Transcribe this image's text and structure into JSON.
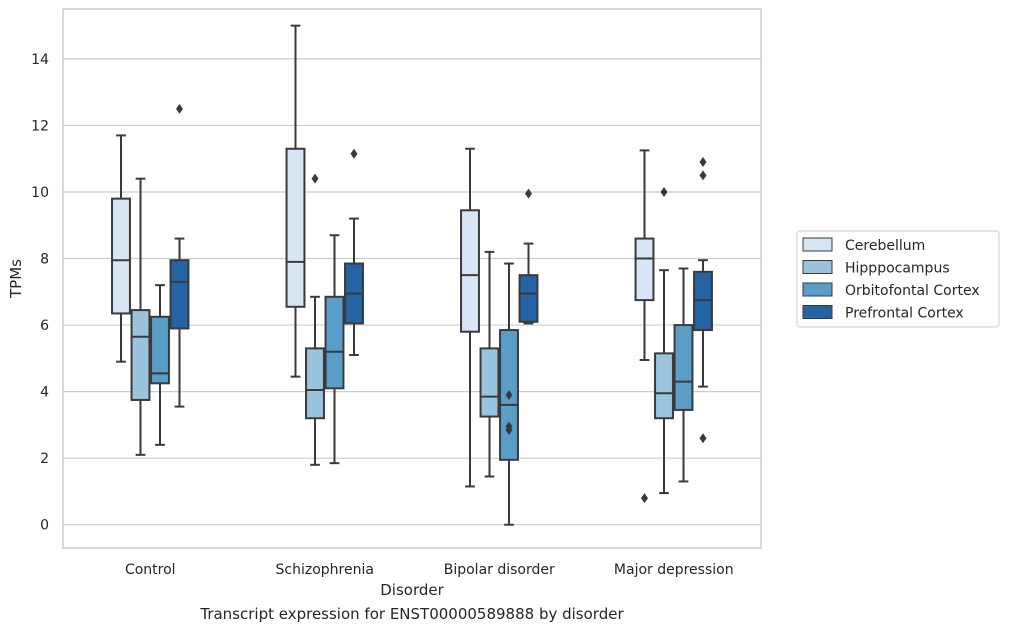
{
  "caption": "Transcript expression for ENST00000589888 by disorder",
  "chart_data": {
    "type": "box",
    "xlabel": "Disorder",
    "ylabel": "TPMs",
    "ylim": [
      -0.7,
      15.5
    ],
    "yticks": [
      0,
      2,
      4,
      6,
      8,
      10,
      12,
      14
    ],
    "grid": "horizontal",
    "legend_position": "right",
    "categories": [
      "Control",
      "Schizophrenia",
      "Bipolar disorder",
      "Major depression"
    ],
    "series": [
      {
        "name": "Cerebellum",
        "color": "#d7e6f4",
        "boxes": [
          {
            "whislo": 4.9,
            "q1": 6.35,
            "med": 7.95,
            "q3": 9.8,
            "whishi": 11.7,
            "fliers": []
          },
          {
            "whislo": 4.45,
            "q1": 6.55,
            "med": 7.9,
            "q3": 11.3,
            "whishi": 15.0,
            "fliers": []
          },
          {
            "whislo": 1.15,
            "q1": 5.8,
            "med": 7.5,
            "q3": 9.45,
            "whishi": 11.3,
            "fliers": []
          },
          {
            "whislo": 4.95,
            "q1": 6.75,
            "med": 8.0,
            "q3": 8.6,
            "whishi": 11.25,
            "fliers": [
              0.8
            ]
          }
        ]
      },
      {
        "name": "Hipppocampus",
        "color": "#9ac3dd",
        "boxes": [
          {
            "whislo": 2.1,
            "q1": 3.75,
            "med": 5.65,
            "q3": 6.45,
            "whishi": 10.4,
            "fliers": []
          },
          {
            "whislo": 1.8,
            "q1": 3.2,
            "med": 4.05,
            "q3": 5.3,
            "whishi": 6.85,
            "fliers": [
              10.4
            ]
          },
          {
            "whislo": 1.45,
            "q1": 3.25,
            "med": 3.85,
            "q3": 5.3,
            "whishi": 8.2,
            "fliers": []
          },
          {
            "whislo": 0.95,
            "q1": 3.2,
            "med": 3.95,
            "q3": 5.15,
            "whishi": 7.65,
            "fliers": [
              10.0
            ]
          }
        ]
      },
      {
        "name": "Orbitofontal Cortex",
        "color": "#5a9ec8",
        "boxes": [
          {
            "whislo": 2.4,
            "q1": 4.25,
            "med": 4.55,
            "q3": 6.25,
            "whishi": 7.2,
            "fliers": []
          },
          {
            "whislo": 1.85,
            "q1": 4.1,
            "med": 5.2,
            "q3": 6.85,
            "whishi": 8.7,
            "fliers": []
          },
          {
            "whislo": 0.0,
            "q1": 1.95,
            "med": 3.6,
            "q3": 5.85,
            "whishi": 7.85,
            "fliers": [
              3.9,
              2.95,
              2.85
            ]
          },
          {
            "whislo": 1.3,
            "q1": 3.45,
            "med": 4.3,
            "q3": 6.0,
            "whishi": 7.7,
            "fliers": []
          }
        ]
      },
      {
        "name": "Prefrontal Cortex",
        "color": "#2464a5",
        "boxes": [
          {
            "whislo": 3.55,
            "q1": 5.9,
            "med": 7.3,
            "q3": 7.95,
            "whishi": 8.6,
            "fliers": [
              12.5
            ]
          },
          {
            "whislo": 5.1,
            "q1": 6.05,
            "med": 6.95,
            "q3": 7.85,
            "whishi": 9.2,
            "fliers": [
              11.15
            ]
          },
          {
            "whislo": 6.05,
            "q1": 6.1,
            "med": 6.95,
            "q3": 7.5,
            "whishi": 8.45,
            "fliers": [
              9.95
            ]
          },
          {
            "whislo": 4.15,
            "q1": 5.85,
            "med": 6.75,
            "q3": 7.6,
            "whishi": 7.95,
            "fliers": [
              10.9,
              10.5,
              2.6
            ]
          }
        ]
      }
    ]
  }
}
